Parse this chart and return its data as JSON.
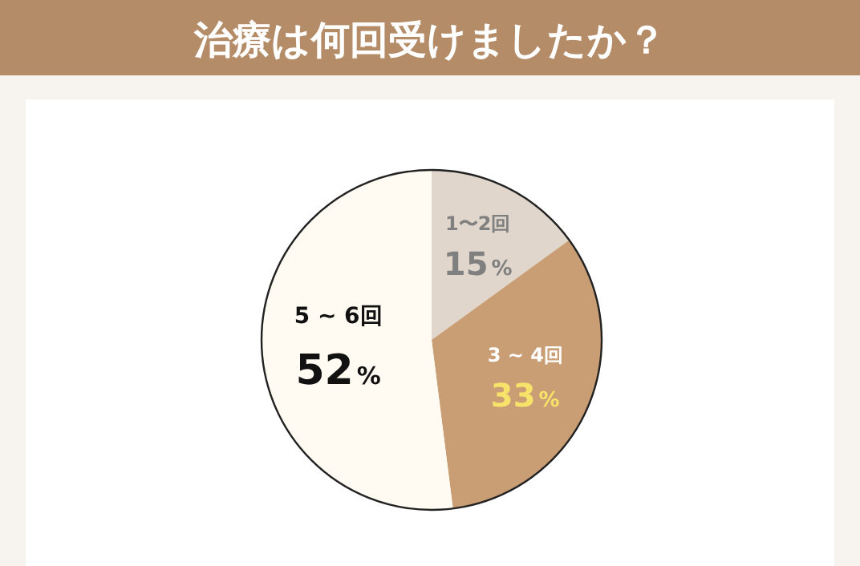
{
  "chart_data": {
    "type": "pie",
    "title": "治療は何回受けましたか？",
    "categories": [
      "1〜2回",
      "3 ~ 4回",
      "5 ~ 6回"
    ],
    "values": [
      15,
      33,
      52
    ],
    "colors": [
      "#e0d6cc",
      "#c99e75",
      "#fffbf2"
    ],
    "value_labels": [
      "15%",
      "33%",
      "52%"
    ]
  }
}
